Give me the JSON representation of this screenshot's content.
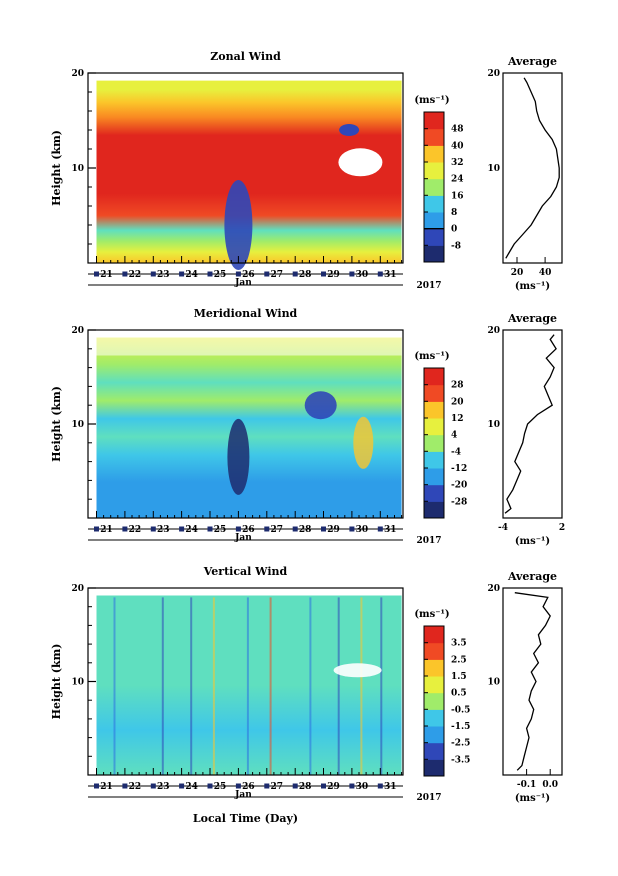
{
  "figure": {
    "x_axis_label": "Local Time (Day)",
    "month_label": "Jan",
    "year_label": "2017",
    "day_ticks": [
      "21",
      "22",
      "23",
      "24",
      "25",
      "26",
      "27",
      "28",
      "29",
      "30",
      "31"
    ]
  },
  "palette": {
    "cold": [
      "#1d2b6e",
      "#2f47b8",
      "#2e6fe0",
      "#2e9de8",
      "#3fc7e8",
      "#5fdfbf",
      "#a0ec6a",
      "#e7f03e",
      "#fbc52a",
      "#f98a22",
      "#f04a24",
      "#e0261e"
    ]
  },
  "chart_data": [
    {
      "type": "heatmap",
      "name": "zonal",
      "title": "Zonal Wind",
      "ylabel": "Height (km)",
      "ylim": [
        0,
        20
      ],
      "y_ticks": [
        10,
        20
      ],
      "x_range_days": [
        20.7,
        31.8
      ],
      "colorbar": {
        "unit": "(ms⁻¹)",
        "levels": [
          -8,
          0,
          8,
          16,
          24,
          32,
          40,
          48
        ],
        "labels": [
          "-8",
          "0",
          "8",
          "16",
          "24",
          "32",
          "40",
          "48"
        ]
      },
      "average": {
        "title": "Average",
        "xlabel": "(ms⁻¹)",
        "xlim": [
          10,
          52
        ],
        "x_ticks": [
          20,
          40
        ],
        "x_tick_labels": [
          "20",
          "40"
        ],
        "heights": [
          0.5,
          1,
          2,
          3,
          4,
          5,
          6,
          7,
          8,
          9,
          10,
          11,
          12,
          13,
          14,
          15,
          16,
          17,
          18,
          19,
          19.5
        ],
        "values": [
          12,
          14,
          18,
          24,
          30,
          34,
          38,
          44,
          48,
          50,
          50,
          49,
          48,
          45,
          40,
          36,
          34,
          33,
          30,
          27,
          25
        ]
      }
    },
    {
      "type": "heatmap",
      "name": "meridional",
      "title": "Meridional Wind",
      "ylabel": "Height (km)",
      "ylim": [
        0,
        20
      ],
      "y_ticks": [
        10,
        20
      ],
      "x_range_days": [
        20.7,
        31.8
      ],
      "colorbar": {
        "unit": "(ms⁻¹)",
        "levels": [
          -28,
          -20,
          -12,
          -4,
          4,
          12,
          20,
          28
        ],
        "labels": [
          "-28",
          "-20",
          "-12",
          "-4",
          "4",
          "12",
          "20",
          "28"
        ]
      },
      "average": {
        "title": "Average",
        "xlabel": "(ms⁻¹)",
        "xlim": [
          -4,
          2
        ],
        "x_ticks": [
          -4,
          2
        ],
        "x_tick_labels": [
          "-4",
          "2"
        ],
        "heights": [
          0.5,
          1,
          2,
          3,
          4,
          5,
          6,
          7,
          8,
          9,
          10,
          11,
          12,
          13,
          14,
          15,
          16,
          17,
          18,
          19,
          19.5
        ],
        "values": [
          -3.8,
          -3.2,
          -3.6,
          -3.0,
          -2.6,
          -2.2,
          -2.8,
          -2.4,
          -2.0,
          -1.8,
          -1.5,
          -0.5,
          1.0,
          0.6,
          0.2,
          0.8,
          1.2,
          0.4,
          1.4,
          0.8,
          1.2
        ]
      }
    },
    {
      "type": "heatmap",
      "name": "vertical",
      "title": "Vertical Wind",
      "ylabel": "Height (km)",
      "ylim": [
        0,
        20
      ],
      "y_ticks": [
        10,
        20
      ],
      "x_range_days": [
        20.7,
        31.8
      ],
      "colorbar": {
        "unit": "(ms⁻¹)",
        "levels": [
          -3.5,
          -2.5,
          -1.5,
          -0.5,
          0.5,
          1.5,
          2.5,
          3.5
        ],
        "labels": [
          "-3.5",
          "-2.5",
          "-1.5",
          "-0.5",
          "0.5",
          "1.5",
          "2.5",
          "3.5"
        ]
      },
      "average": {
        "title": "Average",
        "xlabel": "(ms⁻¹)",
        "xlim": [
          -0.2,
          0.05
        ],
        "x_ticks": [
          -0.1,
          0.0
        ],
        "x_tick_labels": [
          "-0.1",
          "0.0"
        ],
        "heights": [
          0.5,
          1,
          2,
          3,
          4,
          5,
          6,
          7,
          8,
          9,
          10,
          11,
          12,
          13,
          14,
          15,
          16,
          17,
          18,
          19,
          19.5
        ],
        "values": [
          -0.14,
          -0.12,
          -0.11,
          -0.1,
          -0.09,
          -0.1,
          -0.08,
          -0.07,
          -0.09,
          -0.08,
          -0.06,
          -0.08,
          -0.05,
          -0.07,
          -0.04,
          -0.05,
          -0.02,
          0.0,
          -0.03,
          -0.01,
          -0.15
        ]
      }
    }
  ]
}
